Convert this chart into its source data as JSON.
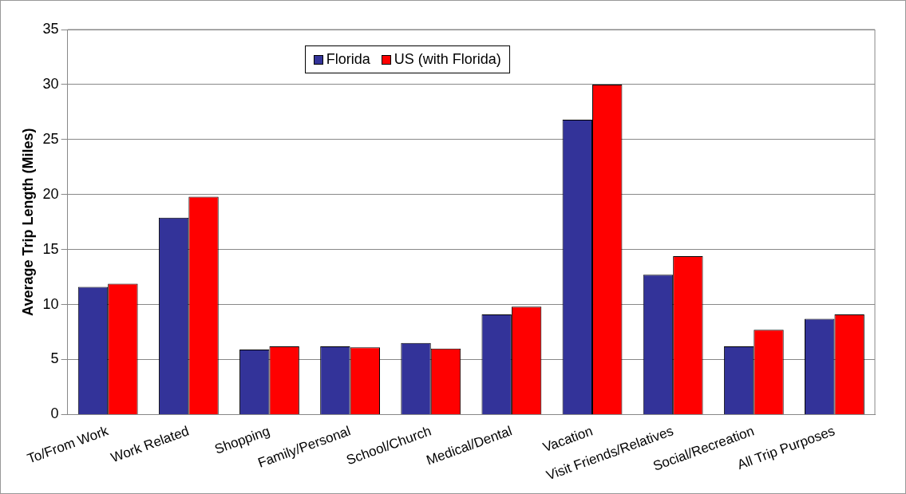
{
  "chart_data": {
    "type": "bar",
    "ylabel": "Average Trip Length (Miles)",
    "categories": [
      "To/From Work",
      "Work Related",
      "Shopping",
      "Family/Personal",
      "School/Church",
      "Medical/Dental",
      "Vacation",
      "Visit Friends/Relatives",
      "Social/Recreation",
      "All Trip Purposes"
    ],
    "series": [
      {
        "name": "Florida",
        "color": "#333399",
        "values": [
          11.6,
          17.9,
          5.9,
          6.2,
          6.5,
          9.1,
          26.8,
          12.7,
          6.2,
          8.7
        ]
      },
      {
        "name": "US (with Florida)",
        "color": "#ff0000",
        "values": [
          11.9,
          19.8,
          6.2,
          6.1,
          6.0,
          9.8,
          30.0,
          14.4,
          7.7,
          9.1
        ]
      }
    ],
    "ylim": [
      0,
      35
    ],
    "yticks": [
      0,
      5,
      10,
      15,
      20,
      25,
      30,
      35
    ],
    "grid": "y",
    "legend": "top"
  }
}
